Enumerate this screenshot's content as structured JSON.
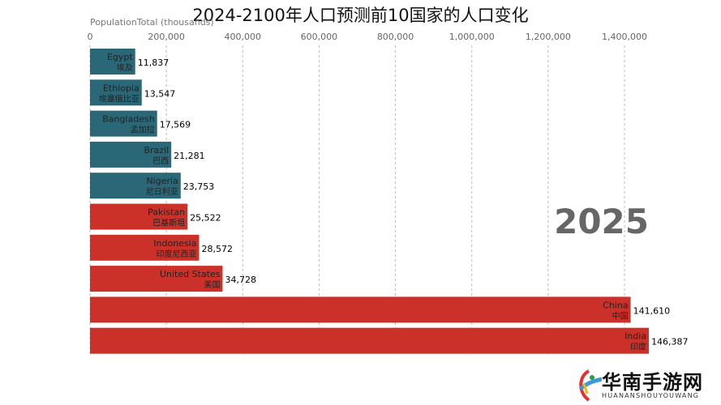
{
  "chart_data": {
    "type": "bar",
    "orientation": "horizontal",
    "title": "2024-2100年人口预测前10国家的人口变化",
    "xlabel": "PopulationTotal (thousands)",
    "x_ticks": [
      "0",
      "200,000",
      "400,000",
      "600,000",
      "800,000",
      "1,000,000",
      "1,200,000",
      "1,400,000"
    ],
    "xlim": [
      0,
      1400000
    ],
    "grid": "vertical dashed",
    "year_label": "2025",
    "categories": [
      {
        "en": "Egypt",
        "zh": "埃及"
      },
      {
        "en": "Ethiopia",
        "zh": "埃塞俄比亚"
      },
      {
        "en": "Bangladesh",
        "zh": "孟加拉"
      },
      {
        "en": "Brazil",
        "zh": "巴西"
      },
      {
        "en": "Nigeria",
        "zh": "尼日利亚"
      },
      {
        "en": "Pakistan",
        "zh": "巴基斯坦"
      },
      {
        "en": "Indonesia",
        "zh": "印度尼西亚"
      },
      {
        "en": "United States",
        "zh": "美国"
      },
      {
        "en": "China",
        "zh": "中国"
      },
      {
        "en": "India",
        "zh": "印度"
      }
    ],
    "value_labels": [
      "11,837",
      "13,547",
      "17,569",
      "21,281",
      "23,753",
      "25,522",
      "28,572",
      "34,728",
      "141,610",
      "146,387"
    ],
    "values": [
      11837,
      13547,
      17569,
      21281,
      23753,
      25522,
      28572,
      34728,
      141610,
      146387
    ],
    "bar_colors": [
      "#2a6878",
      "#2a6878",
      "#2a6878",
      "#2a6878",
      "#2a6878",
      "#cc3129",
      "#cc3129",
      "#cc3129",
      "#cc3129",
      "#cc3129"
    ]
  },
  "watermark": {
    "text": "华南手游网",
    "sub": "HUANANSHOUYOUWANG"
  }
}
